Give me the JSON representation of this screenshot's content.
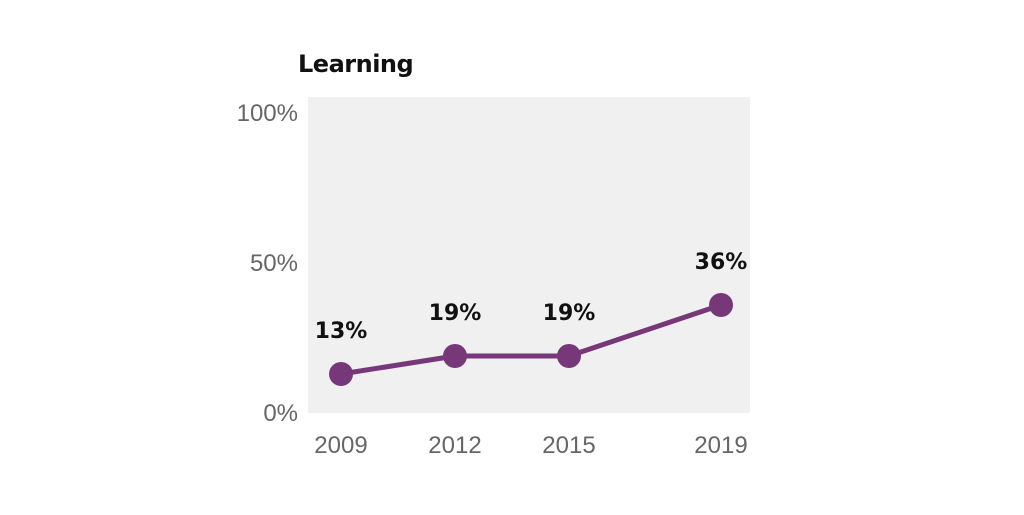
{
  "chart_data": {
    "type": "line",
    "title": "Learning",
    "x": [
      2009,
      2012,
      2015,
      2019
    ],
    "x_tick_labels": [
      "2009",
      "2012",
      "2015",
      "2019"
    ],
    "series": [
      {
        "values": [
          13,
          19,
          19,
          36
        ],
        "labels": [
          "13%",
          "19%",
          "19%",
          "36%"
        ]
      }
    ],
    "ylim": [
      0,
      100
    ],
    "y_ticks": [
      0,
      50,
      100
    ],
    "y_tick_labels": [
      "0%",
      "50%",
      "100%"
    ],
    "grid": false,
    "legend": "none"
  },
  "colors": {
    "series": "#77387a",
    "plot_background": "#f0f0f0"
  }
}
